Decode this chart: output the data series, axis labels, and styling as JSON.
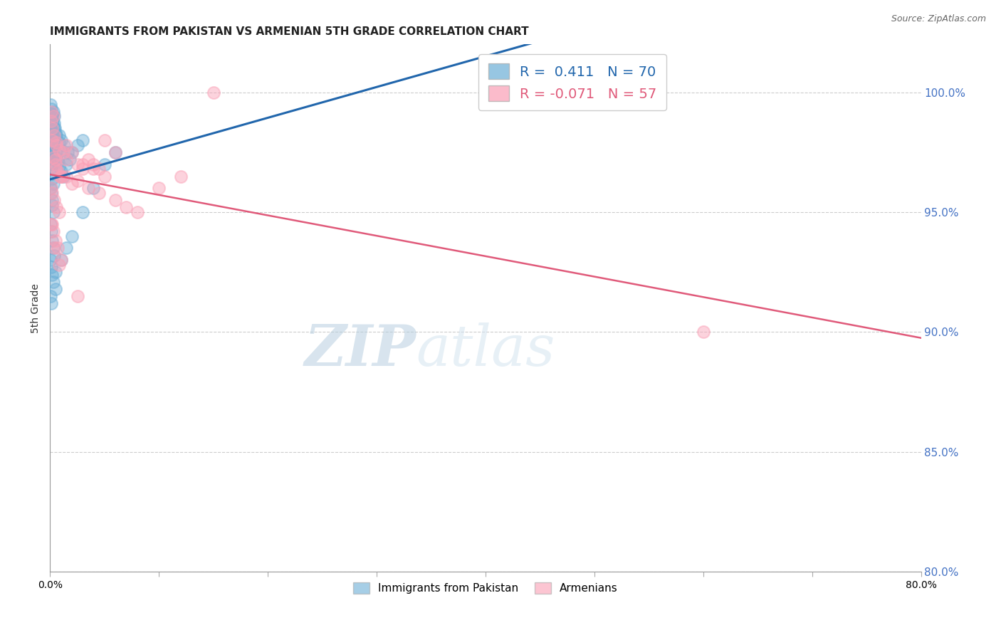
{
  "title": "IMMIGRANTS FROM PAKISTAN VS ARMENIAN 5TH GRADE CORRELATION CHART",
  "source": "Source: ZipAtlas.com",
  "ylabel": "5th Grade",
  "x_min": 0.0,
  "x_max": 80.0,
  "y_min": 80.0,
  "y_max": 102.0,
  "yticks": [
    80.0,
    85.0,
    90.0,
    95.0,
    100.0
  ],
  "xticks": [
    0.0,
    10.0,
    20.0,
    30.0,
    40.0,
    50.0,
    60.0,
    70.0,
    80.0
  ],
  "blue_R": 0.411,
  "blue_N": 70,
  "pink_R": -0.071,
  "pink_N": 57,
  "blue_color": "#6baed6",
  "pink_color": "#fa9fb5",
  "blue_line_color": "#2166ac",
  "pink_line_color": "#e05a7a",
  "blue_scatter": [
    [
      0.05,
      99.5
    ],
    [
      0.1,
      99.3
    ],
    [
      0.15,
      99.1
    ],
    [
      0.2,
      99.0
    ],
    [
      0.25,
      98.8
    ],
    [
      0.3,
      99.2
    ],
    [
      0.35,
      99.0
    ],
    [
      0.4,
      98.7
    ],
    [
      0.45,
      98.5
    ],
    [
      0.5,
      98.3
    ],
    [
      0.1,
      98.5
    ],
    [
      0.15,
      98.3
    ],
    [
      0.2,
      98.1
    ],
    [
      0.25,
      97.9
    ],
    [
      0.3,
      97.7
    ],
    [
      0.05,
      98.0
    ],
    [
      0.1,
      97.8
    ],
    [
      0.15,
      97.6
    ],
    [
      0.2,
      97.4
    ],
    [
      0.25,
      97.2
    ],
    [
      0.05,
      97.0
    ],
    [
      0.1,
      96.8
    ],
    [
      0.15,
      96.6
    ],
    [
      0.2,
      96.4
    ],
    [
      0.3,
      96.2
    ],
    [
      0.05,
      96.0
    ],
    [
      0.1,
      95.8
    ],
    [
      0.15,
      95.5
    ],
    [
      0.2,
      95.3
    ],
    [
      0.3,
      95.0
    ],
    [
      0.05,
      94.5
    ],
    [
      0.1,
      94.2
    ],
    [
      0.2,
      93.8
    ],
    [
      0.3,
      93.5
    ],
    [
      0.4,
      93.2
    ],
    [
      0.05,
      93.0
    ],
    [
      0.1,
      92.7
    ],
    [
      0.2,
      92.4
    ],
    [
      0.3,
      92.1
    ],
    [
      0.5,
      91.8
    ],
    [
      0.5,
      97.5
    ],
    [
      0.6,
      97.3
    ],
    [
      0.7,
      97.1
    ],
    [
      0.8,
      96.9
    ],
    [
      1.0,
      96.7
    ],
    [
      1.2,
      96.5
    ],
    [
      1.5,
      97.0
    ],
    [
      1.8,
      97.2
    ],
    [
      2.0,
      97.5
    ],
    [
      2.5,
      97.8
    ],
    [
      3.0,
      98.0
    ],
    [
      0.8,
      98.2
    ],
    [
      1.0,
      98.0
    ],
    [
      1.3,
      97.8
    ],
    [
      1.6,
      97.5
    ],
    [
      0.05,
      91.5
    ],
    [
      0.1,
      91.2
    ],
    [
      0.5,
      92.5
    ],
    [
      1.0,
      93.0
    ],
    [
      1.5,
      93.5
    ],
    [
      2.0,
      94.0
    ],
    [
      3.0,
      95.0
    ],
    [
      4.0,
      96.0
    ],
    [
      5.0,
      97.0
    ],
    [
      6.0,
      97.5
    ],
    [
      0.2,
      98.8
    ],
    [
      0.4,
      98.5
    ],
    [
      0.6,
      98.2
    ],
    [
      0.8,
      97.9
    ],
    [
      1.0,
      97.6
    ]
  ],
  "pink_scatter": [
    [
      0.1,
      98.8
    ],
    [
      0.2,
      98.5
    ],
    [
      0.4,
      98.2
    ],
    [
      0.6,
      97.9
    ],
    [
      0.8,
      97.6
    ],
    [
      0.3,
      97.3
    ],
    [
      0.5,
      97.0
    ],
    [
      0.7,
      96.7
    ],
    [
      1.0,
      96.5
    ],
    [
      1.5,
      97.2
    ],
    [
      0.1,
      96.0
    ],
    [
      0.2,
      95.8
    ],
    [
      0.4,
      95.5
    ],
    [
      0.6,
      95.2
    ],
    [
      0.8,
      95.0
    ],
    [
      0.1,
      94.5
    ],
    [
      0.3,
      94.2
    ],
    [
      0.5,
      93.8
    ],
    [
      0.7,
      93.5
    ],
    [
      1.0,
      93.0
    ],
    [
      1.5,
      97.8
    ],
    [
      2.0,
      97.5
    ],
    [
      2.5,
      97.0
    ],
    [
      3.0,
      96.8
    ],
    [
      3.5,
      97.2
    ],
    [
      4.0,
      97.0
    ],
    [
      4.5,
      96.8
    ],
    [
      5.0,
      96.5
    ],
    [
      0.1,
      99.2
    ],
    [
      0.3,
      99.0
    ],
    [
      5.0,
      98.0
    ],
    [
      6.0,
      97.5
    ],
    [
      0.5,
      97.2
    ],
    [
      1.0,
      96.5
    ],
    [
      2.0,
      96.2
    ],
    [
      0.2,
      98.0
    ],
    [
      0.6,
      97.8
    ],
    [
      1.2,
      97.5
    ],
    [
      3.0,
      97.0
    ],
    [
      4.0,
      96.8
    ],
    [
      1.5,
      96.5
    ],
    [
      2.5,
      96.3
    ],
    [
      3.5,
      96.0
    ],
    [
      4.5,
      95.8
    ],
    [
      6.0,
      95.5
    ],
    [
      7.0,
      95.2
    ],
    [
      8.0,
      95.0
    ],
    [
      10.0,
      96.0
    ],
    [
      12.0,
      96.5
    ],
    [
      0.8,
      92.8
    ],
    [
      15.0,
      100.0
    ],
    [
      0.2,
      94.5
    ],
    [
      0.4,
      93.5
    ],
    [
      2.5,
      91.5
    ],
    [
      60.0,
      90.0
    ],
    [
      0.5,
      96.8
    ],
    [
      0.9,
      96.5
    ]
  ],
  "watermark_zip": "ZIP",
  "watermark_atlas": "atlas",
  "legend_label_blue": "Immigrants from Pakistan",
  "legend_label_pink": "Armenians",
  "right_label_color": "#4472c4",
  "title_fontsize": 11,
  "source_fontsize": 9,
  "ylabel_fontsize": 10
}
